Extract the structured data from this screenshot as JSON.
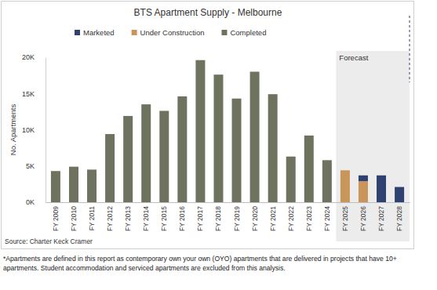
{
  "chart_data": {
    "type": "bar",
    "title": "BTS Apartment Supply - Melbourne",
    "y_label": "No. Apartments",
    "stacked": true,
    "grid": false,
    "legend": "top-left",
    "categories": [
      "FY 2009",
      "FY 2010",
      "FY 2011",
      "FY 2012",
      "FY 2013",
      "FY 2014",
      "FY 2015",
      "FY 2016",
      "FY 2017",
      "FY 2018",
      "FY 2019",
      "FY 2020",
      "FY 2021",
      "FY 2022",
      "FY 2023",
      "FY 2024",
      "FY 2025",
      "FY 2026",
      "FY 2027",
      "FY 2028"
    ],
    "series": [
      {
        "name": "Marketed",
        "color": "#2f4170",
        "values": [
          0,
          0,
          0,
          0,
          0,
          0,
          0,
          0,
          0,
          0,
          0,
          0,
          0,
          0,
          0,
          0,
          0,
          800,
          3700,
          2100
        ]
      },
      {
        "name": "Under Construction",
        "color": "#c9955a",
        "values": [
          0,
          0,
          0,
          0,
          0,
          0,
          0,
          0,
          0,
          0,
          0,
          0,
          0,
          0,
          0,
          0,
          4400,
          2900,
          0,
          0
        ]
      },
      {
        "name": "Completed",
        "color": "#6e735f",
        "values": [
          4300,
          4900,
          4500,
          9400,
          11900,
          13500,
          12600,
          14600,
          19600,
          17600,
          14300,
          18000,
          14900,
          6300,
          9200,
          5800,
          0,
          0,
          0,
          0
        ]
      }
    ],
    "ylim": [
      0,
      20000
    ],
    "yticks": [
      {
        "value": 0,
        "label": "0K"
      },
      {
        "value": 5000,
        "label": "5K"
      },
      {
        "value": 10000,
        "label": "10K"
      },
      {
        "value": 15000,
        "label": "15K"
      },
      {
        "value": 20000,
        "label": "20K"
      }
    ],
    "annotations": [
      {
        "text": "Forecast",
        "x": "FY 2025"
      }
    ],
    "source": "Source: Charter Keck Cramer",
    "footnote": "*Apartments are defined in this report as contemporary own your own (OYO) apartments that are delivered in projects that have 10+ apartments. Student accommodation and serviced apartments are excluded from this analysis."
  }
}
